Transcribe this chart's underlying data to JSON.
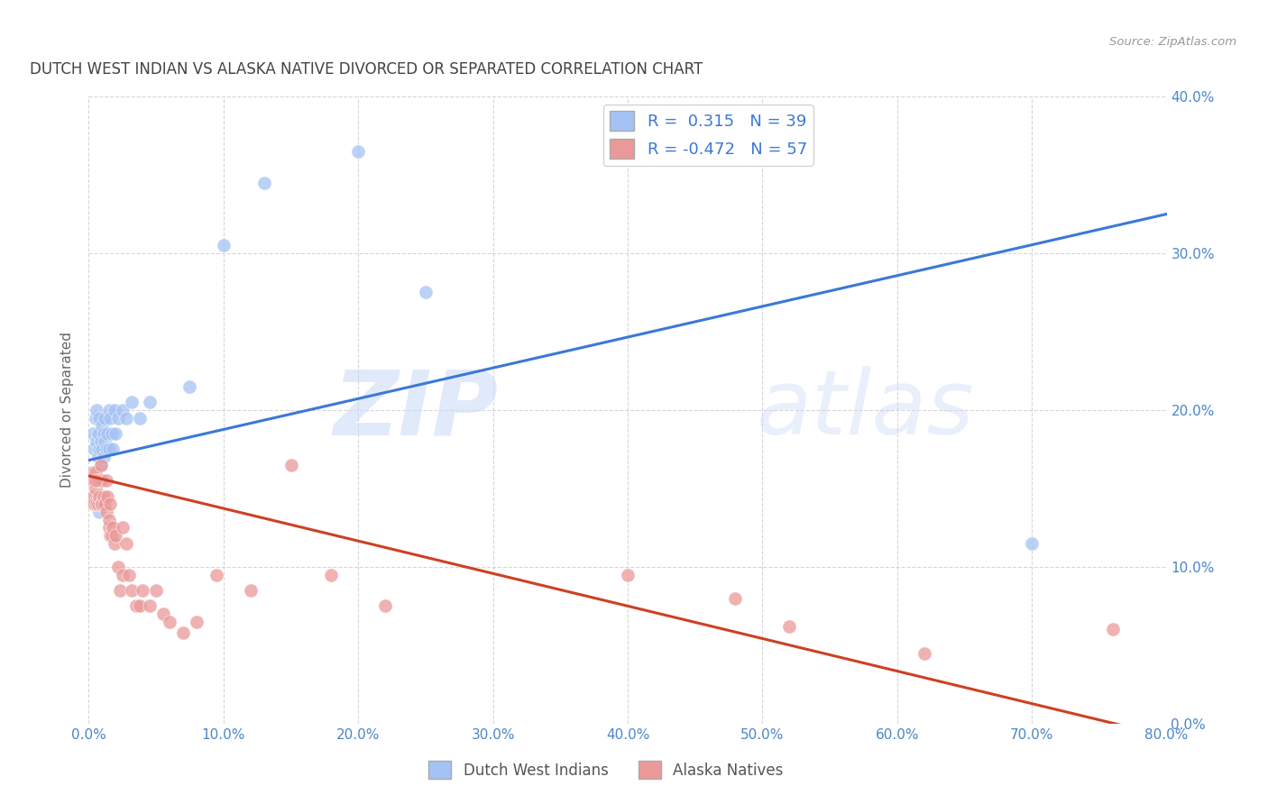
{
  "title": "DUTCH WEST INDIAN VS ALASKA NATIVE DIVORCED OR SEPARATED CORRELATION CHART",
  "source": "Source: ZipAtlas.com",
  "ylabel": "Divorced or Separated",
  "watermark_zip": "ZIP",
  "watermark_atlas": "atlas",
  "blue_R": 0.315,
  "blue_N": 39,
  "pink_R": -0.472,
  "pink_N": 57,
  "blue_color": "#a4c2f4",
  "pink_color": "#ea9999",
  "blue_line_color": "#3c78d8",
  "pink_line_color": "#cc4125",
  "background_color": "#ffffff",
  "grid_color": "#cccccc",
  "axis_label_color": "#4a86c8",
  "title_color": "#434343",
  "source_color": "#999999",
  "ylabel_color": "#666666",
  "xlim": [
    0.0,
    0.8
  ],
  "ylim": [
    0.0,
    0.4
  ],
  "xtick_vals": [
    0.0,
    0.1,
    0.2,
    0.3,
    0.4,
    0.5,
    0.6,
    0.7,
    0.8
  ],
  "ytick_vals": [
    0.0,
    0.1,
    0.2,
    0.3,
    0.4
  ],
  "blue_line_x0": 0.0,
  "blue_line_y0": 0.168,
  "blue_line_x1": 0.8,
  "blue_line_y1": 0.325,
  "pink_line_x0": 0.0,
  "pink_line_y0": 0.158,
  "pink_line_x1": 0.8,
  "pink_line_y1": -0.008,
  "blue_scatter_x": [
    0.003,
    0.004,
    0.005,
    0.006,
    0.006,
    0.007,
    0.007,
    0.008,
    0.008,
    0.009,
    0.009,
    0.01,
    0.01,
    0.011,
    0.011,
    0.012,
    0.012,
    0.013,
    0.014,
    0.015,
    0.015,
    0.016,
    0.017,
    0.018,
    0.019,
    0.02,
    0.022,
    0.025,
    0.028,
    0.032,
    0.038,
    0.045,
    0.075,
    0.1,
    0.13,
    0.2,
    0.25,
    0.7,
    0.008
  ],
  "blue_scatter_y": [
    0.185,
    0.175,
    0.195,
    0.18,
    0.2,
    0.185,
    0.17,
    0.195,
    0.175,
    0.18,
    0.165,
    0.19,
    0.175,
    0.185,
    0.17,
    0.195,
    0.18,
    0.175,
    0.185,
    0.2,
    0.175,
    0.195,
    0.185,
    0.175,
    0.2,
    0.185,
    0.195,
    0.2,
    0.195,
    0.205,
    0.195,
    0.205,
    0.215,
    0.305,
    0.345,
    0.365,
    0.275,
    0.115,
    0.135
  ],
  "pink_scatter_x": [
    0.002,
    0.003,
    0.003,
    0.004,
    0.004,
    0.005,
    0.005,
    0.006,
    0.006,
    0.007,
    0.007,
    0.008,
    0.008,
    0.009,
    0.009,
    0.01,
    0.01,
    0.011,
    0.012,
    0.013,
    0.013,
    0.014,
    0.015,
    0.015,
    0.016,
    0.016,
    0.017,
    0.018,
    0.019,
    0.02,
    0.022,
    0.023,
    0.025,
    0.025,
    0.028,
    0.03,
    0.032,
    0.035,
    0.038,
    0.04,
    0.045,
    0.05,
    0.055,
    0.06,
    0.07,
    0.08,
    0.095,
    0.12,
    0.15,
    0.18,
    0.22,
    0.4,
    0.48,
    0.52,
    0.62,
    0.76,
    0.005
  ],
  "pink_scatter_y": [
    0.155,
    0.145,
    0.16,
    0.155,
    0.14,
    0.16,
    0.15,
    0.155,
    0.14,
    0.155,
    0.14,
    0.155,
    0.145,
    0.165,
    0.14,
    0.155,
    0.14,
    0.145,
    0.14,
    0.155,
    0.135,
    0.145,
    0.125,
    0.13,
    0.12,
    0.14,
    0.12,
    0.125,
    0.115,
    0.12,
    0.1,
    0.085,
    0.125,
    0.095,
    0.115,
    0.095,
    0.085,
    0.075,
    0.075,
    0.085,
    0.075,
    0.085,
    0.07,
    0.065,
    0.058,
    0.065,
    0.095,
    0.085,
    0.165,
    0.095,
    0.075,
    0.095,
    0.08,
    0.062,
    0.045,
    0.06,
    0.155
  ]
}
